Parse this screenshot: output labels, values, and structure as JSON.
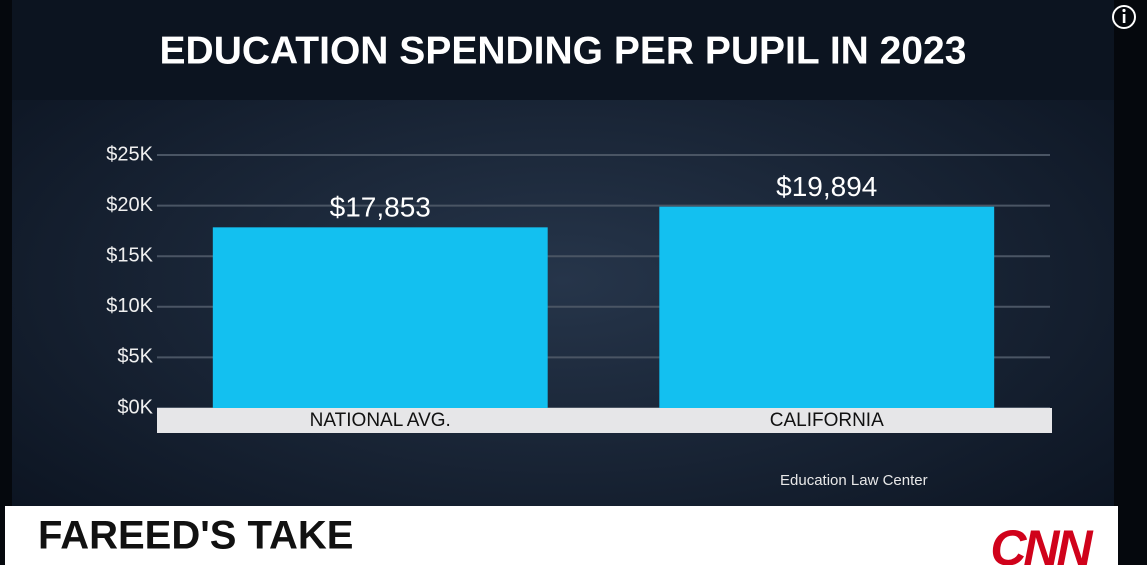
{
  "chart_data": {
    "type": "bar",
    "title": "EDUCATION SPENDING PER PUPIL IN 2023",
    "categories": [
      "NATIONAL AVG.",
      "CALIFORNIA"
    ],
    "values": [
      17853,
      19894
    ],
    "value_labels": [
      "$17,853",
      "$19,894"
    ],
    "color": "#13c0f0",
    "ylim": [
      0,
      25000
    ],
    "yticks": [
      {
        "value": 0,
        "label": "$0K"
      },
      {
        "value": 5000,
        "label": "$5K"
      },
      {
        "value": 10000,
        "label": "$10K"
      },
      {
        "value": 15000,
        "label": "$15K"
      },
      {
        "value": 20000,
        "label": "$20K"
      },
      {
        "value": 25000,
        "label": "$25K"
      }
    ],
    "grid": true,
    "source": "Education Law Center"
  },
  "banner": {
    "title": "FAREED'S TAKE",
    "logo": "CNN"
  }
}
